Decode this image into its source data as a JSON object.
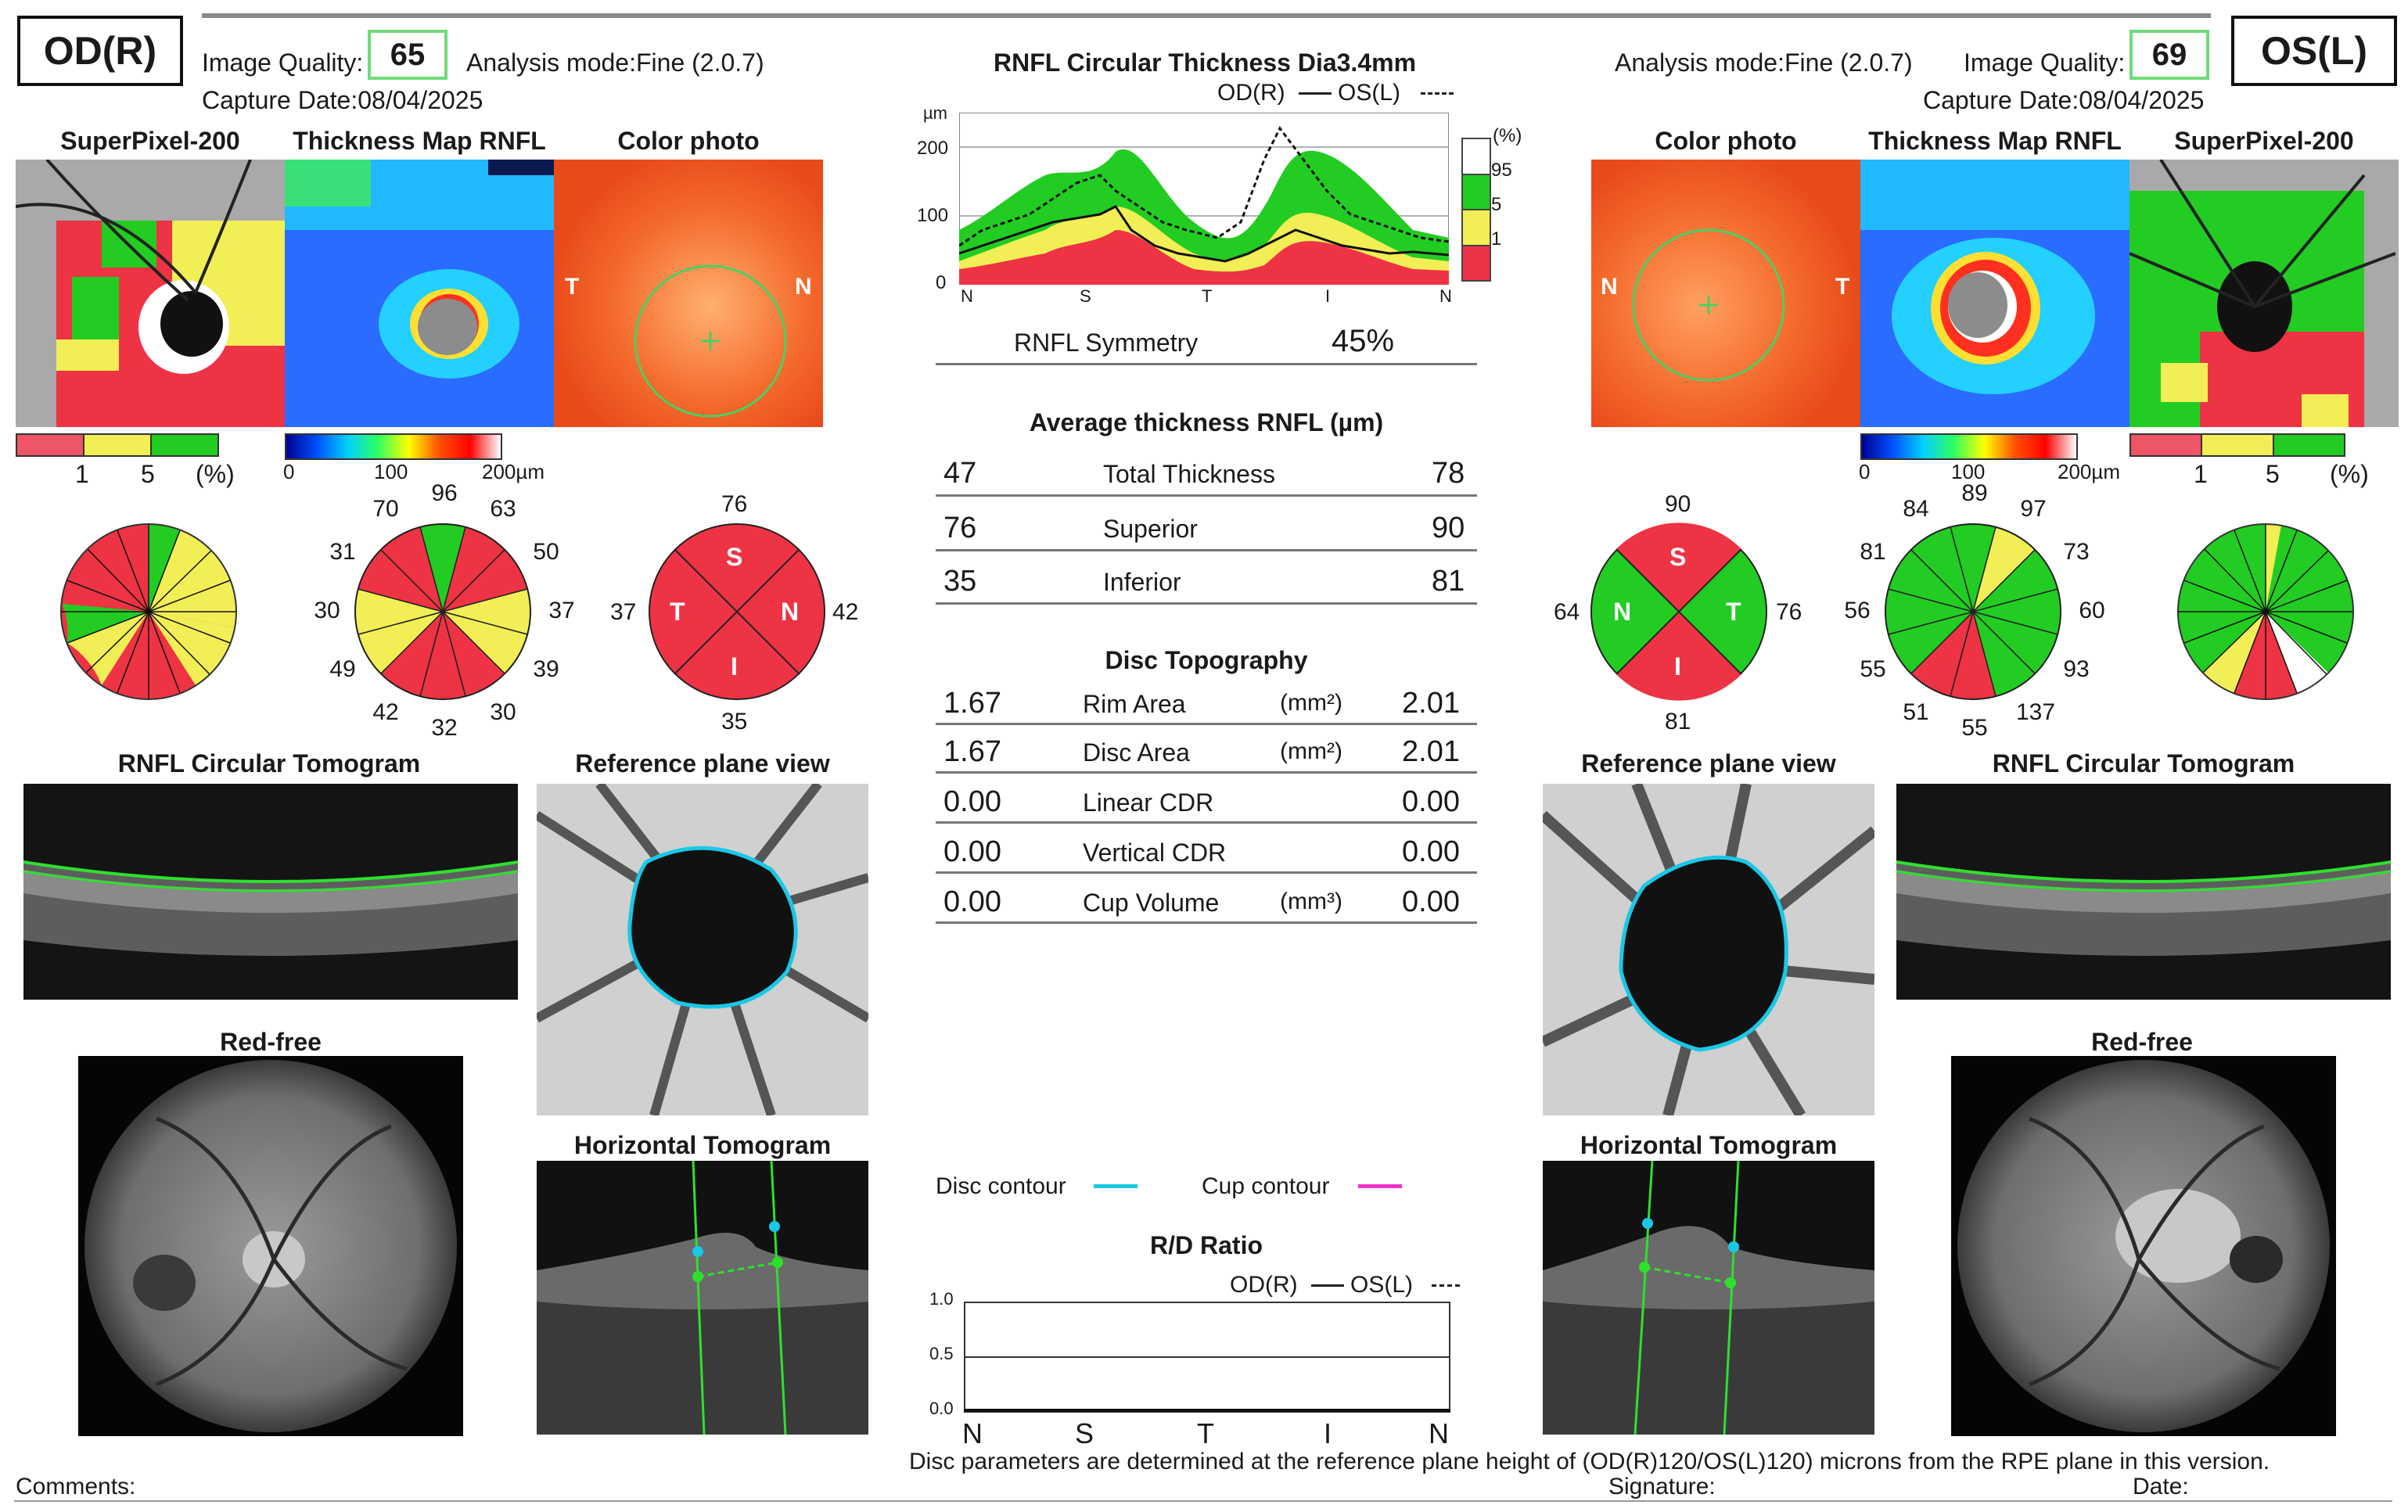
{
  "header": {
    "od_label": "OD(R)",
    "os_label": "OS(L)",
    "image_quality_label": "Image Quality:",
    "od_quality": "65",
    "os_quality": "69",
    "analysis_mode": "Analysis mode:Fine (2.0.7)",
    "capture_date": "Capture Date:08/04/2025"
  },
  "panels": {
    "superpixel": "SuperPixel-200",
    "thickness_map": "Thickness Map RNFL",
    "color_photo": "Color photo",
    "rnfl_tomogram": "RNFL Circular Tomogram",
    "reference_plane": "Reference plane view",
    "red_free": "Red-free",
    "horizontal_tomogram": "Horizontal Tomogram"
  },
  "scales": {
    "sp_ticks_od": [
      "1",
      "5",
      "(%)"
    ],
    "sp_ticks_os": [
      "1",
      "5",
      "(%)"
    ],
    "tm_ticks": [
      "0",
      "100",
      "200µm"
    ],
    "photo_T": "T",
    "photo_N": "N"
  },
  "od": {
    "clock": [
      "96",
      "63",
      "50",
      "37",
      "39",
      "30",
      "32",
      "42",
      "49",
      "30",
      "31",
      "70"
    ],
    "quadrant": {
      "S": "76",
      "N": "42",
      "I": "35",
      "T": "37"
    }
  },
  "os": {
    "clock": [
      "89",
      "97",
      "73",
      "60",
      "93",
      "137",
      "55",
      "51",
      "55",
      "56",
      "81",
      "84"
    ],
    "quadrant": {
      "S": "90",
      "T": "76",
      "I": "81",
      "N": "64"
    }
  },
  "quad_letters": {
    "S": "S",
    "N": "N",
    "I": "I",
    "T": "T"
  },
  "center": {
    "profile_title": "RNFL Circular Thickness Dia3.4mm",
    "legend_od": "OD(R)",
    "legend_os": "OS(L)",
    "y_unit": "µm",
    "y_ticks": [
      "200",
      "100",
      "0"
    ],
    "x_ticks": [
      "N",
      "S",
      "T",
      "I",
      "N"
    ],
    "pct_label": "(%)",
    "pct_ticks": [
      "95",
      "5",
      "1"
    ],
    "symmetry_label": "RNFL Symmetry",
    "symmetry_value": "45%",
    "avg_title": "Average thickness RNFL (µm)",
    "avg_rows": [
      {
        "od": "47",
        "label": "Total Thickness",
        "os": "78"
      },
      {
        "od": "76",
        "label": "Superior",
        "os": "90"
      },
      {
        "od": "35",
        "label": "Inferior",
        "os": "81"
      }
    ],
    "disc_title": "Disc Topography",
    "disc_rows": [
      {
        "od": "1.67",
        "label": "Rim Area",
        "unit": "(mm²)",
        "os": "2.01"
      },
      {
        "od": "1.67",
        "label": "Disc Area",
        "unit": "(mm²)",
        "os": "2.01"
      },
      {
        "od": "0.00",
        "label": "Linear CDR",
        "unit": "",
        "os": "0.00"
      },
      {
        "od": "0.00",
        "label": "Vertical CDR",
        "unit": "",
        "os": "0.00"
      },
      {
        "od": "0.00",
        "label": "Cup Volume",
        "unit": "(mm³)",
        "os": "0.00"
      }
    ],
    "disc_contour": "Disc contour",
    "cup_contour": "Cup contour",
    "rd_title": "R/D Ratio",
    "rd_y_ticks": [
      "1.0",
      "0.5",
      "0.0"
    ],
    "rd_x_ticks": [
      "N",
      "S",
      "T",
      "I",
      "N"
    ]
  },
  "footer": {
    "note": "Disc parameters are determined at the reference plane height of (OD(R)120/OS(L)120) microns from the RPE plane in this version.",
    "comments": "Comments:",
    "signature": "Signature:",
    "date": "Date:"
  },
  "colors": {
    "green": "#22cc22",
    "yellow": "#f2ee55",
    "red": "#ee3344",
    "cyan": "#19c8e6",
    "magenta": "#ee33cc"
  }
}
